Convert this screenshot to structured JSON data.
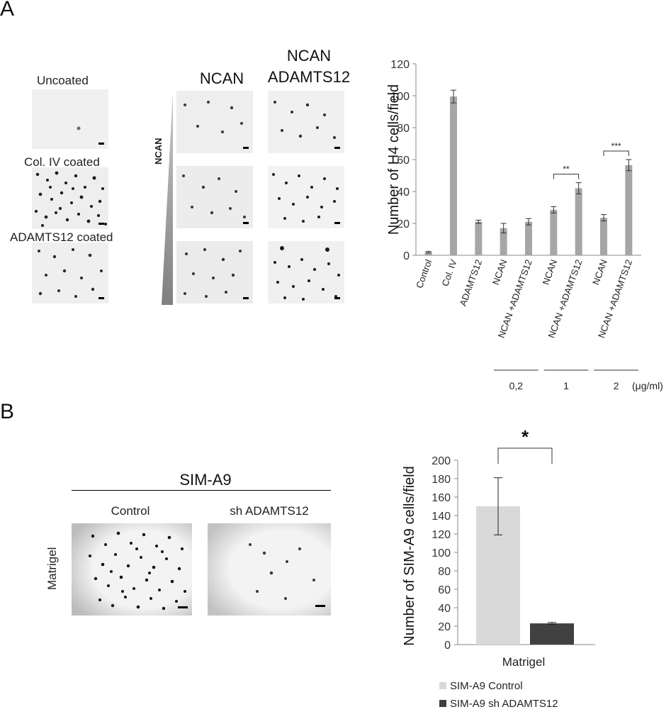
{
  "panel_a": {
    "letter": "A",
    "coating_labels": [
      "Uncoated",
      "Col. IV coated",
      "ADAMTS12 coated"
    ],
    "column_headers": {
      "ncan": "NCAN",
      "ncan_adamts12_line1": "NCAN",
      "ncan_adamts12_line2": "ADAMTS12"
    },
    "gradient_label": "NCAN"
  },
  "panel_b": {
    "letter": "B",
    "cell_line": "SIM-A9",
    "column_labels": [
      "Control",
      "sh ADAMTS12"
    ],
    "row_label": "Matrigel"
  },
  "chart_data": [
    {
      "type": "bar",
      "ylabel": "Number of H4 cells/field",
      "ylim": [
        0,
        120
      ],
      "yticks": [
        0,
        20,
        40,
        60,
        80,
        100,
        120
      ],
      "categories": [
        "Control",
        "Col. IV",
        "ADAMTS12",
        "NCAN",
        "NCAN +ADAMTS12",
        "NCAN",
        "NCAN +ADAMTS12",
        "NCAN",
        "NCAN +ADAMTS12"
      ],
      "values": [
        2,
        99.5,
        21,
        17,
        21,
        28.5,
        42,
        23.5,
        56.5
      ],
      "errors": [
        0.5,
        4,
        1,
        3,
        2,
        2,
        3.5,
        2,
        3.5
      ],
      "bar_color": "#a6a6a6",
      "significance": [
        {
          "between": [
            5,
            6
          ],
          "label": "**"
        },
        {
          "between": [
            7,
            8
          ],
          "label": "***"
        }
      ],
      "concentration_groups": [
        {
          "label": "0,2",
          "categories": [
            3,
            4
          ]
        },
        {
          "label": "1",
          "categories": [
            5,
            6
          ]
        },
        {
          "label": "2",
          "categories": [
            7,
            8
          ]
        }
      ],
      "concentration_unit": "(μg/ml)"
    },
    {
      "type": "bar",
      "ylabel": "Number of SIM-A9 cells/field",
      "ylim": [
        0,
        200
      ],
      "yticks": [
        0,
        20,
        40,
        60,
        80,
        100,
        120,
        140,
        160,
        180,
        200
      ],
      "categories": [
        "Matrigel"
      ],
      "series": [
        {
          "name": "SIM-A9 Control",
          "values": [
            150
          ],
          "errors": [
            31
          ],
          "color": "#d9d9d9"
        },
        {
          "name": "SIM-A9 sh ADAMTS12",
          "values": [
            23
          ],
          "errors": [
            1
          ],
          "color": "#404040"
        }
      ],
      "significance": [
        {
          "between": [
            0,
            1
          ],
          "label": "*"
        }
      ],
      "legend_position": "bottom"
    }
  ]
}
